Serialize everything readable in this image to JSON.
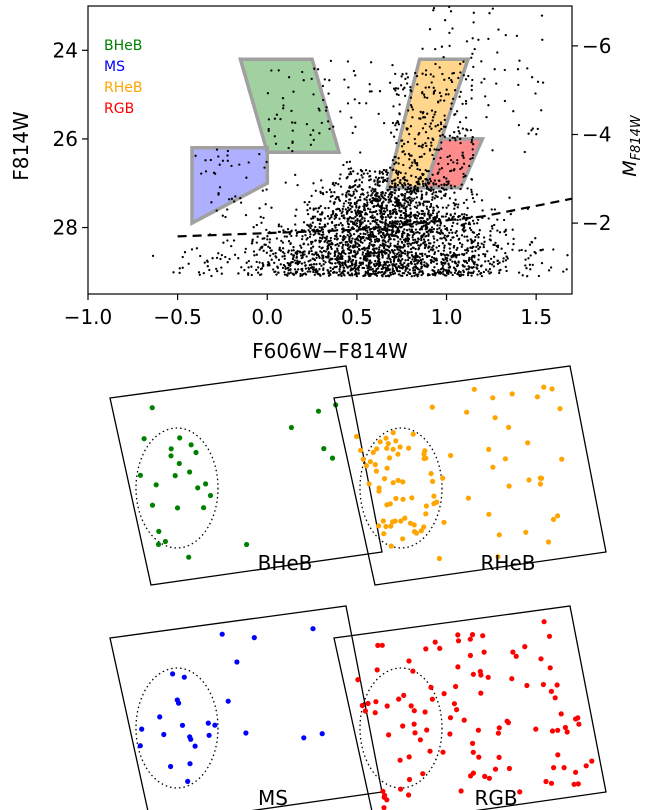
{
  "chart_data": [
    {
      "type": "scatter",
      "title": "",
      "xlabel": "F606W−F814W",
      "ylabel": "F814W",
      "ylabel_right": "M_F814W",
      "ylabel_right_main": "M",
      "ylabel_right_sub": "F814W",
      "xlim": [
        -1.0,
        1.7
      ],
      "ylim": [
        29.5,
        23.0
      ],
      "x_ticks": [
        -1.0,
        -0.5,
        0.0,
        0.5,
        1.0,
        1.5
      ],
      "x_tick_labels": [
        "−1.0",
        "−0.5",
        "0.0",
        "0.5",
        "1.0",
        "1.5"
      ],
      "y_ticks": [
        24,
        26,
        28
      ],
      "y_tick_labels": [
        "24",
        "26",
        "28"
      ],
      "y2_ticks": [
        -6,
        -4,
        -2
      ],
      "y2_tick_labels": [
        "−6",
        "−4",
        "−2"
      ],
      "y2_offset": 29.9,
      "legend_position": "top-left",
      "grid": false,
      "regions": [
        {
          "name": "BHeB",
          "color": "#008000",
          "fill": "#2e9a2e",
          "polygon": [
            [
              -0.15,
              24.2
            ],
            [
              0.25,
              24.2
            ],
            [
              0.4,
              26.3
            ],
            [
              0.0,
              26.3
            ]
          ]
        },
        {
          "name": "MS",
          "color": "#0000ff",
          "fill": "#4d4dff",
          "polygon": [
            [
              -0.42,
              26.2
            ],
            [
              0.0,
              26.2
            ],
            [
              0.0,
              27.0
            ],
            [
              -0.42,
              27.9
            ]
          ]
        },
        {
          "name": "RHeB",
          "color": "#ffa500",
          "fill": "#ffa500",
          "polygon": [
            [
              0.85,
              24.2
            ],
            [
              1.12,
              24.2
            ],
            [
              0.88,
              27.1
            ],
            [
              0.67,
              27.1
            ]
          ]
        },
        {
          "name": "RGB",
          "color": "#ff0000",
          "fill": "#ff0000",
          "polygon": [
            [
              0.97,
              26.0
            ],
            [
              1.2,
              26.0
            ],
            [
              1.08,
              27.1
            ],
            [
              0.88,
              27.1
            ]
          ]
        }
      ],
      "dashed_line": [
        [
          -0.5,
          28.2
        ],
        [
          0.5,
          28.05
        ],
        [
          1.2,
          27.75
        ],
        [
          1.7,
          27.35
        ]
      ],
      "points_description_count": 3500
    },
    {
      "type": "scatter",
      "panels": [
        {
          "label": "BHeB",
          "color": "#008000",
          "count": 28
        },
        {
          "label": "RHeB",
          "color": "#ffa500",
          "count": 95
        },
        {
          "label": "MS",
          "color": "#0000ff",
          "count": 26
        },
        {
          "label": "RGB",
          "color": "#ff0000",
          "count": 110
        }
      ]
    }
  ]
}
